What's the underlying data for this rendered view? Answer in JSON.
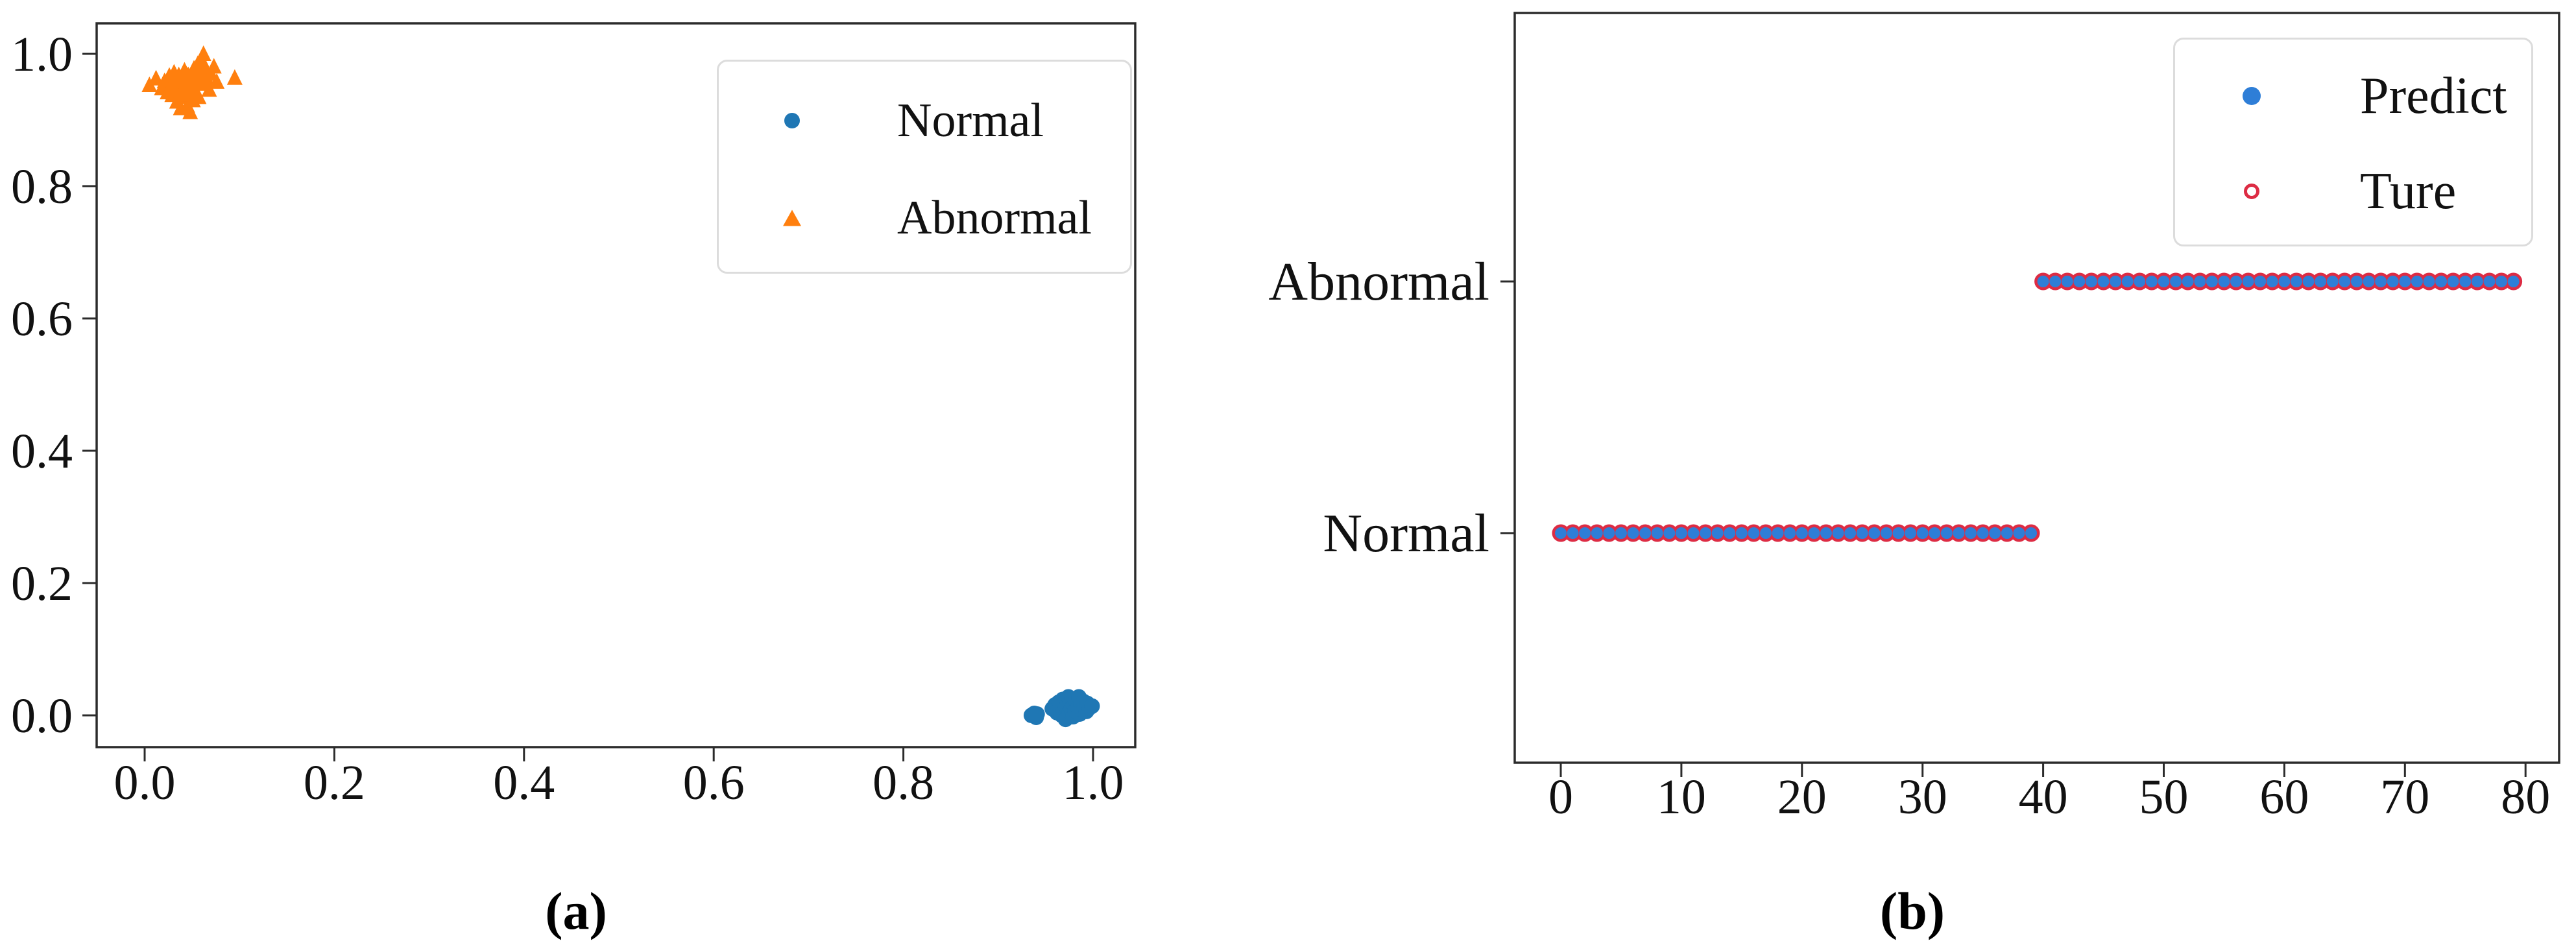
{
  "figure": {
    "caption_a": "(a)",
    "caption_b": "(b)"
  },
  "colors": {
    "normal_blue": "#1f77b4",
    "abnormal_orange": "#ff7f0e",
    "predict_blue": "#2e7ed7",
    "true_red": "#dd2c44",
    "axis": "#2b2b2b",
    "text": "#111111",
    "legend_border": "#dcdcdc"
  },
  "chart_data": [
    {
      "id": "a",
      "type": "scatter",
      "caption": "(a)",
      "title": "",
      "xlabel": "",
      "ylabel": "",
      "xlim": [
        -0.05,
        1.05
      ],
      "ylim": [
        -0.05,
        1.05
      ],
      "grid": false,
      "x_tick_values": [
        0,
        0.2,
        0.4,
        0.6,
        0.8,
        1.0
      ],
      "x_tick_labels": [
        "0.0",
        "0.2",
        "0.4",
        "0.6",
        "0.8",
        "1.0"
      ],
      "y_tick_values": [
        0,
        0.2,
        0.4,
        0.6,
        0.8,
        1.0
      ],
      "y_tick_labels": [
        "0.0",
        "0.2",
        "0.4",
        "0.6",
        "0.8",
        "1.0"
      ],
      "legend": {
        "position": "upper right",
        "entries": [
          {
            "label": "Normal",
            "marker": "circle",
            "color": "#1f77b4"
          },
          {
            "label": "Abnormal",
            "marker": "triangle",
            "color": "#ff7f0e"
          }
        ]
      },
      "series": [
        {
          "name": "Normal",
          "marker": "circle",
          "color": "#1f77b4",
          "points": [
            [
              0.935,
              0.0
            ],
            [
              0.938,
              0.003
            ],
            [
              0.94,
              -0.003
            ],
            [
              0.941,
              0.002
            ],
            [
              0.957,
              0.01
            ],
            [
              0.96,
              0.016
            ],
            [
              0.962,
              0.004
            ],
            [
              0.964,
              0.02
            ],
            [
              0.965,
              0.012
            ],
            [
              0.967,
              0.0
            ],
            [
              0.968,
              0.024
            ],
            [
              0.969,
              0.008
            ],
            [
              0.97,
              0.018
            ],
            [
              0.971,
              -0.006
            ],
            [
              0.972,
              0.013
            ],
            [
              0.974,
              0.028
            ],
            [
              0.975,
              0.005
            ],
            [
              0.976,
              0.019
            ],
            [
              0.977,
              0.01
            ],
            [
              0.978,
              0.025
            ],
            [
              0.979,
              -0.002
            ],
            [
              0.98,
              0.015
            ],
            [
              0.981,
              0.007
            ],
            [
              0.982,
              0.022
            ],
            [
              0.984,
              0.012
            ],
            [
              0.985,
              0.028
            ],
            [
              0.986,
              0.002
            ],
            [
              0.987,
              0.017
            ],
            [
              0.988,
              0.009
            ],
            [
              0.99,
              0.021
            ],
            [
              0.991,
              0.013
            ],
            [
              0.993,
              0.006
            ],
            [
              0.994,
              0.018
            ],
            [
              0.996,
              0.011
            ],
            [
              0.999,
              0.014
            ]
          ]
        },
        {
          "name": "Abnormal",
          "marker": "triangle",
          "color": "#ff7f0e",
          "points": [
            [
              0.005,
              0.952
            ],
            [
              0.012,
              0.962
            ],
            [
              0.018,
              0.947
            ],
            [
              0.021,
              0.958
            ],
            [
              0.024,
              0.941
            ],
            [
              0.026,
              0.966
            ],
            [
              0.028,
              0.951
            ],
            [
              0.029,
              0.937
            ],
            [
              0.031,
              0.971
            ],
            [
              0.032,
              0.959
            ],
            [
              0.033,
              0.944
            ],
            [
              0.034,
              0.927
            ],
            [
              0.035,
              0.954
            ],
            [
              0.036,
              0.967
            ],
            [
              0.037,
              0.939
            ],
            [
              0.038,
              0.917
            ],
            [
              0.039,
              0.949
            ],
            [
              0.04,
              0.961
            ],
            [
              0.041,
              0.934
            ],
            [
              0.042,
              0.974
            ],
            [
              0.043,
              0.946
            ],
            [
              0.044,
              0.957
            ],
            [
              0.045,
              0.921
            ],
            [
              0.046,
              0.967
            ],
            [
              0.047,
              0.938
            ],
            [
              0.048,
              0.911
            ],
            [
              0.049,
              0.952
            ],
            [
              0.05,
              0.964
            ],
            [
              0.051,
              0.929
            ],
            [
              0.052,
              0.977
            ],
            [
              0.053,
              0.943
            ],
            [
              0.055,
              0.957
            ],
            [
              0.056,
              0.984
            ],
            [
              0.057,
              0.934
            ],
            [
              0.058,
              0.969
            ],
            [
              0.06,
              0.99
            ],
            [
              0.061,
              0.954
            ],
            [
              0.062,
              0.999
            ],
            [
              0.064,
              0.977
            ],
            [
              0.066,
              0.961
            ],
            [
              0.068,
              0.945
            ],
            [
              0.07,
              0.969
            ],
            [
              0.073,
              0.98
            ],
            [
              0.076,
              0.957
            ],
            [
              0.095,
              0.963
            ]
          ]
        }
      ]
    },
    {
      "id": "b",
      "type": "scatter",
      "caption": "(b)",
      "title": "",
      "xlabel": "",
      "ylabel": "",
      "xlim": [
        -4,
        83
      ],
      "grid": false,
      "x_tick_values": [
        0,
        10,
        20,
        30,
        40,
        50,
        60,
        70,
        80
      ],
      "x_tick_labels": [
        "0",
        "10",
        "20",
        "30",
        "40",
        "50",
        "60",
        "70",
        "80"
      ],
      "y_categories": [
        "Normal",
        "Abnormal"
      ],
      "legend": {
        "position": "upper right",
        "entries": [
          {
            "label": "Predict",
            "marker": "filled-circle",
            "color": "#2e7ed7"
          },
          {
            "label": "Ture",
            "marker": "open-circle",
            "color": "#dd2c44"
          }
        ]
      },
      "series": [
        {
          "name": "Predict",
          "marker": "filled-circle",
          "color": "#2e7ed7",
          "y_by_x": {
            "Normal": [
              0,
              1,
              2,
              3,
              4,
              5,
              6,
              7,
              8,
              9,
              10,
              11,
              12,
              13,
              14,
              15,
              16,
              17,
              18,
              19,
              20,
              21,
              22,
              23,
              24,
              25,
              26,
              27,
              28,
              29,
              30,
              31,
              32,
              33,
              34,
              35,
              36,
              37,
              38,
              39
            ],
            "Abnormal": [
              40,
              41,
              42,
              43,
              44,
              45,
              46,
              47,
              48,
              49,
              50,
              51,
              52,
              53,
              54,
              55,
              56,
              57,
              58,
              59,
              60,
              61,
              62,
              63,
              64,
              65,
              66,
              67,
              68,
              69,
              70,
              71,
              72,
              73,
              74,
              75,
              76,
              77,
              78,
              79
            ]
          }
        },
        {
          "name": "Ture",
          "marker": "open-circle",
          "color": "#dd2c44",
          "y_by_x": {
            "Normal": [
              0,
              1,
              2,
              3,
              4,
              5,
              6,
              7,
              8,
              9,
              10,
              11,
              12,
              13,
              14,
              15,
              16,
              17,
              18,
              19,
              20,
              21,
              22,
              23,
              24,
              25,
              26,
              27,
              28,
              29,
              30,
              31,
              32,
              33,
              34,
              35,
              36,
              37,
              38,
              39
            ],
            "Abnormal": [
              40,
              41,
              42,
              43,
              44,
              45,
              46,
              47,
              48,
              49,
              50,
              51,
              52,
              53,
              54,
              55,
              56,
              57,
              58,
              59,
              60,
              61,
              62,
              63,
              64,
              65,
              66,
              67,
              68,
              69,
              70,
              71,
              72,
              73,
              74,
              75,
              76,
              77,
              78,
              79
            ]
          }
        }
      ]
    }
  ]
}
